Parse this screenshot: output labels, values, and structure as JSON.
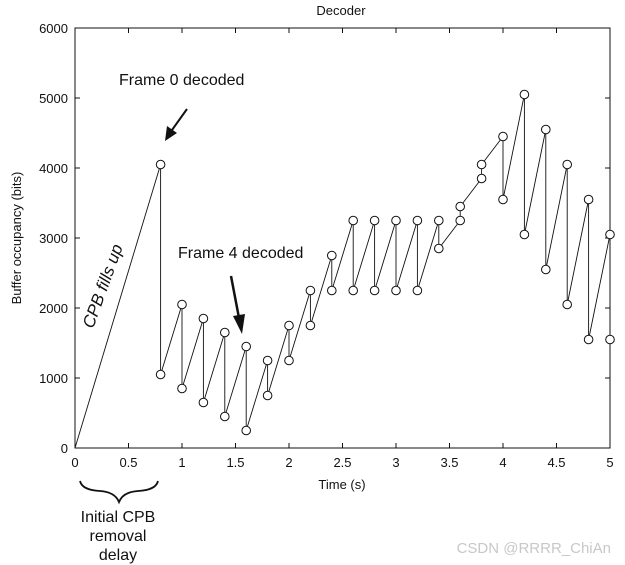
{
  "chart_data": {
    "type": "line",
    "title": "Decoder",
    "xlabel": "Time (s)",
    "ylabel": "Buffer occupancy (bits)",
    "xlim": [
      0,
      5
    ],
    "ylim": [
      0,
      6000
    ],
    "x_ticks": [
      0,
      0.5,
      1,
      1.5,
      2,
      2.5,
      3,
      3.5,
      4,
      4.5,
      5
    ],
    "x_tick_labels": [
      "0",
      "0.5",
      "1",
      "1.5",
      "2",
      "2.5",
      "3",
      "3.5",
      "4",
      "4.5",
      "5"
    ],
    "y_ticks": [
      0,
      1000,
      2000,
      3000,
      4000,
      5000,
      6000
    ],
    "y_tick_labels": [
      "0",
      "1000",
      "2000",
      "3000",
      "4000",
      "5000",
      "6000"
    ],
    "grid": false,
    "series": [
      {
        "x": [
          0,
          0.8,
          0.8,
          1.0,
          1.0,
          1.2,
          1.2,
          1.4,
          1.4,
          1.6,
          1.6,
          1.8,
          1.8,
          2.0,
          2.0,
          2.2,
          2.2,
          2.4,
          2.4,
          2.6,
          2.6,
          2.8,
          2.8,
          3.0,
          3.0,
          3.2,
          3.2,
          3.4,
          3.4,
          3.6,
          3.6,
          3.8,
          3.8,
          4.0,
          4.0,
          4.2,
          4.2,
          4.4,
          4.4,
          4.6,
          4.6,
          4.8,
          4.8,
          5.0,
          5.0
        ],
        "y": [
          0,
          4050,
          1050,
          2050,
          850,
          1850,
          650,
          1650,
          450,
          1450,
          250,
          1250,
          750,
          1750,
          1250,
          2250,
          1750,
          2750,
          2250,
          3250,
          2250,
          3250,
          2250,
          3250,
          2250,
          3250,
          2250,
          3250,
          2850,
          3250,
          3450,
          3850,
          4050,
          4450,
          3550,
          5050,
          3050,
          4550,
          2550,
          4050,
          2050,
          3550,
          1550,
          3050,
          1550
        ],
        "markers": [
          false,
          true,
          true,
          true,
          true,
          true,
          true,
          true,
          true,
          true,
          true,
          true,
          true,
          true,
          true,
          true,
          true,
          true,
          true,
          true,
          true,
          true,
          true,
          true,
          true,
          true,
          true,
          true,
          true,
          true,
          true,
          true,
          true,
          true,
          true,
          true,
          true,
          true,
          true,
          true,
          true,
          true,
          true,
          true,
          true
        ]
      }
    ],
    "annotations": [
      {
        "text": "Frame 0 decoded",
        "points_to": [
          0.8,
          4050
        ]
      },
      {
        "text": "Frame 4 decoded",
        "points_to": [
          1.6,
          1450
        ]
      },
      {
        "text": "CPB fills up",
        "along_segment": [
          [
            0,
            0
          ],
          [
            0.8,
            4050
          ]
        ]
      },
      {
        "text": [
          "Initial CPB",
          "removal",
          "delay"
        ],
        "spans_x": [
          0,
          0.8
        ]
      }
    ]
  },
  "watermark": "CSDN @RRRR_ChiAn"
}
